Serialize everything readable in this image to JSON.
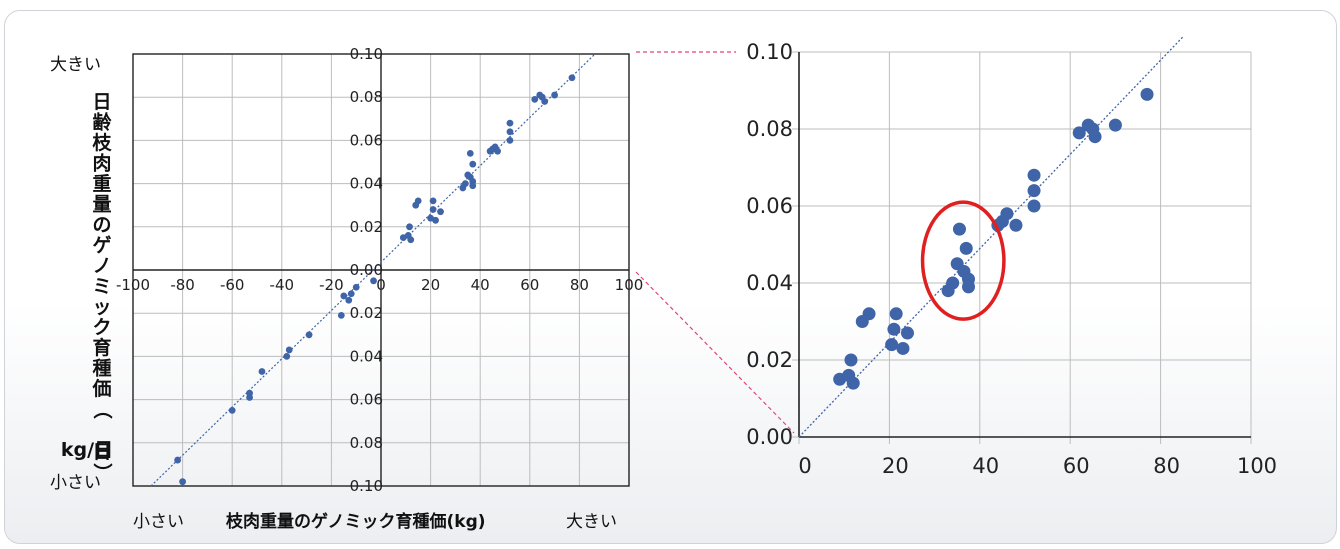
{
  "labels": {
    "y_axis": "日齢枝肉重量のゲノミック育種価（kg/日）",
    "x_axis": "枝肉重量のゲノミック育種価(kg)",
    "big": "大きい",
    "small": "小さい"
  },
  "colors": {
    "dot": "#3f64a8",
    "trend": "#3f64a8",
    "grid": "#bdbdbd",
    "axis": "#222222",
    "connector": "#e0457b",
    "highlight": "#e02020"
  },
  "chart_data": [
    {
      "type": "scatter",
      "name": "full",
      "xlim": [
        -100,
        100
      ],
      "ylim": [
        -0.1,
        0.1
      ],
      "x_ticks": [
        "-100",
        "-80",
        "-60",
        "-40",
        "-20",
        "0",
        "20",
        "40",
        "60",
        "80",
        "100"
      ],
      "y_ticks_pos": [
        "0.10",
        "0.08",
        "0.06",
        "0.04",
        "0.02",
        "0.00"
      ],
      "y_ticks_neg": [
        "0.02",
        "0.04",
        "0.06",
        "0.08",
        "0.10"
      ],
      "grid": true,
      "trendline": true,
      "points": [
        [
          9,
          0.015
        ],
        [
          11,
          0.016
        ],
        [
          11.5,
          0.02
        ],
        [
          12,
          0.014
        ],
        [
          14,
          0.03
        ],
        [
          15,
          0.032
        ],
        [
          20,
          0.024
        ],
        [
          21,
          0.028
        ],
        [
          21,
          0.032
        ],
        [
          22,
          0.023
        ],
        [
          24,
          0.027
        ],
        [
          33,
          0.038
        ],
        [
          34,
          0.04
        ],
        [
          35,
          0.044
        ],
        [
          36,
          0.054
        ],
        [
          36,
          0.043
        ],
        [
          37,
          0.049
        ],
        [
          37,
          0.041
        ],
        [
          37,
          0.039
        ],
        [
          44,
          0.055
        ],
        [
          45,
          0.056
        ],
        [
          46,
          0.057
        ],
        [
          47,
          0.055
        ],
        [
          52,
          0.06
        ],
        [
          52,
          0.064
        ],
        [
          52,
          0.068
        ],
        [
          62,
          0.079
        ],
        [
          64,
          0.081
        ],
        [
          65,
          0.08
        ],
        [
          66,
          0.078
        ],
        [
          70,
          0.081
        ],
        [
          77,
          0.089
        ],
        [
          -3,
          -0.005
        ],
        [
          -10,
          -0.008
        ],
        [
          -12,
          -0.011
        ],
        [
          -13,
          -0.014
        ],
        [
          -15,
          -0.012
        ],
        [
          -16,
          -0.021
        ],
        [
          -29,
          -0.03
        ],
        [
          -37,
          -0.037
        ],
        [
          -38,
          -0.04
        ],
        [
          -48,
          -0.047
        ],
        [
          -53,
          -0.057
        ],
        [
          -53,
          -0.059
        ],
        [
          -60,
          -0.065
        ],
        [
          -82,
          -0.088
        ],
        [
          -80,
          -0.098
        ]
      ]
    },
    {
      "type": "scatter",
      "name": "zoom",
      "xlim": [
        0,
        100
      ],
      "ylim": [
        0,
        0.1
      ],
      "x_ticks": [
        "0",
        "20",
        "40",
        "60",
        "80",
        "100"
      ],
      "y_ticks": [
        "0.00",
        "0.02",
        "0.04",
        "0.06",
        "0.08",
        "0.10"
      ],
      "grid": true,
      "trendline": true,
      "highlight": {
        "cx": 37,
        "cy": 0.044,
        "rx": 9,
        "ry": 0.016
      },
      "points": [
        [
          9,
          0.015
        ],
        [
          11,
          0.016
        ],
        [
          11.5,
          0.02
        ],
        [
          12,
          0.014
        ],
        [
          14,
          0.03
        ],
        [
          15.5,
          0.032
        ],
        [
          20.5,
          0.024
        ],
        [
          21,
          0.028
        ],
        [
          21.5,
          0.032
        ],
        [
          23,
          0.023
        ],
        [
          24,
          0.027
        ],
        [
          33,
          0.038
        ],
        [
          34,
          0.04
        ],
        [
          35,
          0.045
        ],
        [
          35.5,
          0.054
        ],
        [
          36.5,
          0.043
        ],
        [
          37,
          0.049
        ],
        [
          37.5,
          0.041
        ],
        [
          37.5,
          0.039
        ],
        [
          44,
          0.055
        ],
        [
          45,
          0.056
        ],
        [
          46,
          0.058
        ],
        [
          48,
          0.055
        ],
        [
          52,
          0.06
        ],
        [
          52,
          0.064
        ],
        [
          52,
          0.068
        ],
        [
          62,
          0.079
        ],
        [
          64,
          0.081
        ],
        [
          65,
          0.08
        ],
        [
          65.5,
          0.078
        ],
        [
          70,
          0.081
        ],
        [
          77,
          0.089
        ]
      ]
    }
  ]
}
